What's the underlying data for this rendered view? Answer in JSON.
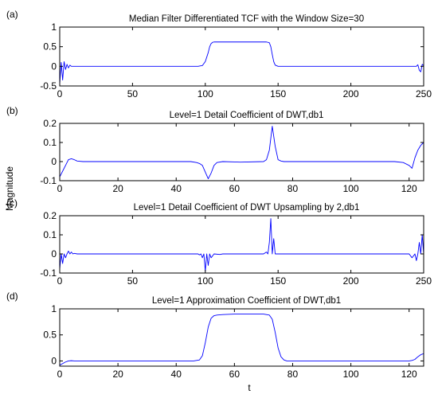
{
  "figure": {
    "ylabel": "Magnitude",
    "xlabel": "t",
    "line_color": "#0000ff"
  },
  "chart_data": [
    {
      "type": "line",
      "panel_label": "(a)",
      "title": "Median Filter Differentiated TCF with the Window Size=30",
      "xlim": [
        0,
        250
      ],
      "ylim": [
        -0.5,
        1
      ],
      "xticks": [
        0,
        50,
        100,
        150,
        200,
        250
      ],
      "yticks": [
        -0.5,
        0,
        0.5,
        1
      ],
      "ytick_labels": [
        "-0.5",
        "0",
        "0.5",
        "1"
      ],
      "series": [
        {
          "x": [
            0,
            1,
            2,
            3,
            4,
            5,
            6,
            7,
            8,
            10,
            95,
            98,
            100,
            102,
            103,
            104,
            105,
            106,
            107,
            110,
            142,
            144,
            145,
            146,
            147,
            148,
            150,
            245,
            246,
            247,
            248,
            249,
            250
          ],
          "y": [
            -0.45,
            0.1,
            -0.35,
            0.12,
            -0.08,
            0.05,
            -0.04,
            0.03,
            0,
            0,
            0,
            0.02,
            0.12,
            0.35,
            0.5,
            0.58,
            0.61,
            0.62,
            0.62,
            0.62,
            0.62,
            0.6,
            0.5,
            0.3,
            0.12,
            0.03,
            0,
            0,
            0.04,
            -0.1,
            -0.14,
            0.05,
            0.02
          ]
        }
      ]
    },
    {
      "type": "line",
      "panel_label": "(b)",
      "title": "Level=1 Detail Coefficient of DWT,db1",
      "xlim": [
        0,
        125
      ],
      "ylim": [
        -0.1,
        0.2
      ],
      "xticks": [
        0,
        20,
        40,
        60,
        80,
        100,
        120
      ],
      "yticks": [
        -0.1,
        0,
        0.1,
        0.2
      ],
      "ytick_labels": [
        "-0.1",
        "0",
        "0.1",
        "0.2"
      ],
      "series": [
        {
          "x": [
            0,
            1,
            2,
            3,
            4,
            5,
            6,
            8,
            45,
            47,
            48,
            49,
            50,
            51,
            52,
            53,
            54,
            56,
            60,
            62,
            70,
            71,
            72,
            73,
            74,
            75,
            76,
            77,
            115,
            118,
            120,
            121,
            122,
            123,
            124,
            125
          ],
          "y": [
            -0.08,
            -0.05,
            -0.02,
            0.01,
            0.015,
            0.01,
            0.003,
            0,
            0,
            -0.005,
            -0.01,
            -0.02,
            -0.055,
            -0.09,
            -0.06,
            -0.02,
            -0.005,
            0,
            -0.002,
            -0.003,
            0,
            0.01,
            0.06,
            0.185,
            0.08,
            0.01,
            0.003,
            0,
            0,
            -0.005,
            -0.02,
            -0.035,
            0.02,
            0.06,
            0.085,
            0.1
          ]
        }
      ]
    },
    {
      "type": "line",
      "panel_label": "(c)",
      "title": "Level=1 Detail Coefficient of DWT Upsampling by 2,db1",
      "xlim": [
        0,
        250
      ],
      "ylim": [
        -0.1,
        0.2
      ],
      "xticks": [
        0,
        50,
        100,
        150,
        200,
        250
      ],
      "yticks": [
        -0.1,
        0,
        0.1,
        0.2
      ],
      "ytick_labels": [
        "-0.1",
        "0",
        "0.1",
        "0.2"
      ],
      "series": [
        {
          "x": [
            0,
            1,
            2,
            3,
            4,
            5,
            6,
            7,
            8,
            9,
            10,
            12,
            95,
            96,
            97,
            98,
            99,
            100,
            101,
            102,
            103,
            104,
            106,
            110,
            112,
            140,
            142,
            143,
            144,
            145,
            146,
            147,
            148,
            240,
            242,
            244,
            245,
            246,
            247,
            248,
            249,
            250
          ],
          "y": [
            -0.08,
            0,
            -0.05,
            0,
            -0.02,
            0,
            0.015,
            0,
            0.01,
            0,
            0.003,
            0,
            0,
            -0.005,
            0,
            -0.02,
            0,
            -0.09,
            0,
            -0.06,
            0,
            -0.02,
            0,
            -0.003,
            0,
            0,
            0.01,
            0,
            0.06,
            0.185,
            0,
            0.08,
            0,
            0,
            -0.02,
            0,
            -0.035,
            0,
            0.06,
            0,
            0.1,
            0
          ]
        }
      ]
    },
    {
      "type": "line",
      "panel_label": "(d)",
      "title": "Level=1 Approximation Coefficient of DWT,db1",
      "xlim": [
        0,
        125
      ],
      "ylim": [
        -0.1,
        1
      ],
      "xticks": [
        0,
        20,
        40,
        60,
        80,
        100,
        120
      ],
      "yticks": [
        0,
        0.5,
        1
      ],
      "ytick_labels": [
        "0",
        "0.5",
        "1"
      ],
      "series": [
        {
          "x": [
            0,
            1,
            2,
            3,
            4,
            5,
            6,
            46,
            48,
            49,
            50,
            51,
            52,
            53,
            54,
            56,
            60,
            70,
            72,
            73,
            74,
            75,
            76,
            77,
            78,
            120,
            121,
            122,
            123,
            124,
            125
          ],
          "y": [
            -0.08,
            -0.05,
            -0.02,
            0,
            0.005,
            0,
            0,
            0,
            0.02,
            0.1,
            0.35,
            0.65,
            0.82,
            0.87,
            0.88,
            0.89,
            0.9,
            0.9,
            0.88,
            0.8,
            0.55,
            0.25,
            0.08,
            0.02,
            0,
            0,
            0.01,
            0.03,
            0.08,
            0.12,
            0.14
          ]
        }
      ]
    }
  ]
}
